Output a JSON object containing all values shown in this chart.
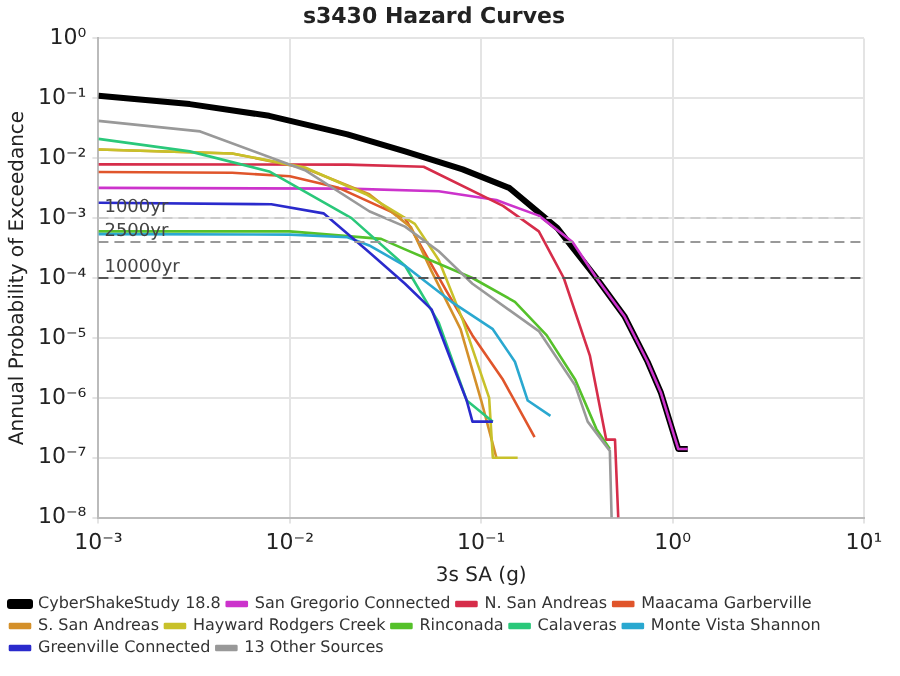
{
  "chart_data": {
    "type": "line",
    "title": "s3430 Hazard Curves",
    "xlabel": "3s SA (g)",
    "ylabel": "Annual Probability of Exceedance",
    "log": "xy",
    "grid": true,
    "legend": "bottom",
    "marker": "none",
    "line_style": "solid",
    "xlim": [
      0.001,
      10
    ],
    "xticks": [
      {
        "value": 0.001,
        "label": "10⁻³"
      },
      {
        "value": 0.01,
        "label": "10⁻²"
      },
      {
        "value": 0.1,
        "label": "10⁻¹"
      },
      {
        "value": 1,
        "label": "10⁰"
      },
      {
        "value": 10,
        "label": "10¹"
      }
    ],
    "ylim": [
      1e-08,
      1
    ],
    "yticks": [
      {
        "value": 1e-08,
        "label": "10⁻⁸"
      },
      {
        "value": 1e-07,
        "label": "10⁻⁷"
      },
      {
        "value": 1e-06,
        "label": "10⁻⁶"
      },
      {
        "value": 1e-05,
        "label": "10⁻⁵"
      },
      {
        "value": 0.0001,
        "label": "10⁻⁴"
      },
      {
        "value": 0.001,
        "label": "10⁻³"
      },
      {
        "value": 0.01,
        "label": "10⁻²"
      },
      {
        "value": 0.1,
        "label": "10⁻¹"
      },
      {
        "value": 1,
        "label": "10⁰"
      }
    ],
    "ref_lines": [
      {
        "axis": "y",
        "value": 0.001,
        "label": "1000yr",
        "color": "#cccccc",
        "line_style": "dashed"
      },
      {
        "axis": "y",
        "value": 0.0004,
        "label": "2500yr",
        "color": "#999999",
        "line_style": "dashed"
      },
      {
        "axis": "y",
        "value": 0.0001,
        "label": "10000yr",
        "color": "#555555",
        "line_style": "dashed"
      }
    ],
    "series": [
      {
        "name": "CyberShakeStudy 18.8",
        "color": "#000000",
        "x": [
          0.001,
          0.003,
          0.0078,
          0.02,
          0.04,
          0.08,
          0.14,
          0.25,
          0.4,
          0.56,
          0.74,
          0.87,
          1.07,
          1.2
        ],
        "values": [
          0.11,
          0.08,
          0.051,
          0.025,
          0.013,
          0.0065,
          0.0032,
          0.00068,
          0.0001,
          2.3e-05,
          4e-06,
          1.2e-06,
          1.4e-07,
          1.4e-07
        ]
      },
      {
        "name": "San Gregorio Connected",
        "color": "#cc33cc",
        "x": [
          0.001,
          0.02,
          0.06,
          0.12,
          0.2,
          0.3,
          0.4,
          0.56,
          0.74,
          0.87,
          1.07,
          1.2
        ],
        "values": [
          0.0032,
          0.0031,
          0.0028,
          0.002,
          0.0011,
          0.0004,
          0.0001,
          2.3e-05,
          4e-06,
          1.2e-06,
          1.4e-07,
          1.4e-07
        ]
      },
      {
        "name": "N. San Andreas",
        "color": "#d62d4a",
        "x": [
          0.001,
          0.02,
          0.05,
          0.13,
          0.2,
          0.27,
          0.37,
          0.45,
          0.5,
          0.52
        ],
        "values": [
          0.0079,
          0.0078,
          0.0072,
          0.0016,
          0.0006,
          0.0001,
          5e-06,
          2e-07,
          2e-07,
          1e-08
        ]
      },
      {
        "name": "Maacama Garberville",
        "color": "#e0552b",
        "x": [
          0.001,
          0.005,
          0.01,
          0.018,
          0.04,
          0.066,
          0.09,
          0.13,
          0.19
        ],
        "values": [
          0.0059,
          0.0057,
          0.005,
          0.0032,
          0.001,
          6e-05,
          1.1e-05,
          2e-06,
          2.2e-07
        ]
      },
      {
        "name": "S. San Andreas",
        "color": "#d4902a",
        "x": [
          0.001,
          0.005,
          0.012,
          0.026,
          0.043,
          0.055,
          0.078,
          0.1,
          0.12
        ],
        "values": [
          0.014,
          0.012,
          0.0068,
          0.0025,
          0.0007,
          0.00013,
          1.4e-05,
          9e-07,
          1e-07
        ]
      },
      {
        "name": "Hayward Rodgers Creek",
        "color": "#c8c12a",
        "x": [
          0.001,
          0.005,
          0.012,
          0.025,
          0.045,
          0.06,
          0.08,
          0.11,
          0.115,
          0.155
        ],
        "values": [
          0.014,
          0.012,
          0.007,
          0.0025,
          0.0008,
          0.0002,
          2e-05,
          1e-06,
          1e-07,
          1e-07
        ]
      },
      {
        "name": "Rinconada",
        "color": "#55c12a",
        "x": [
          0.001,
          0.01,
          0.03,
          0.04,
          0.09,
          0.15,
          0.22,
          0.31,
          0.4,
          0.47
        ],
        "values": [
          0.0006,
          0.0006,
          0.00045,
          0.0003,
          0.0001,
          4e-05,
          1.1e-05,
          2e-06,
          3e-07,
          1.4e-07
        ]
      },
      {
        "name": "Calaveras",
        "color": "#2ac87a",
        "x": [
          0.001,
          0.003,
          0.0078,
          0.021,
          0.04,
          0.06,
          0.084,
          0.115
        ],
        "values": [
          0.021,
          0.013,
          0.006,
          0.001,
          0.00016,
          1.8e-05,
          9e-07,
          4e-07
        ]
      },
      {
        "name": "Monte Vista Shannon",
        "color": "#2aa8d0",
        "x": [
          0.001,
          0.01,
          0.02,
          0.026,
          0.04,
          0.07,
          0.115,
          0.15,
          0.175,
          0.23
        ],
        "values": [
          0.00054,
          0.00053,
          0.00048,
          0.00035,
          0.00016,
          4e-05,
          1.4e-05,
          4e-06,
          9e-07,
          5e-07
        ]
      },
      {
        "name": "Greenville Connected",
        "color": "#2a2acc",
        "x": [
          0.001,
          0.008,
          0.015,
          0.025,
          0.04,
          0.055,
          0.07,
          0.084,
          0.09,
          0.115
        ],
        "values": [
          0.0018,
          0.0017,
          0.0012,
          0.0003,
          8e-05,
          3e-05,
          4e-06,
          9e-07,
          4e-07,
          4e-07
        ]
      },
      {
        "name": "13 Other Sources",
        "color": "#999999",
        "x": [
          0.001,
          0.0034,
          0.012,
          0.026,
          0.04,
          0.06,
          0.09,
          0.2,
          0.31,
          0.36,
          0.47,
          0.48
        ],
        "values": [
          0.042,
          0.028,
          0.0063,
          0.0013,
          0.00072,
          0.00028,
          8e-05,
          1.3e-05,
          1.6e-06,
          4e-07,
          1.3e-07,
          1e-08
        ]
      }
    ]
  }
}
